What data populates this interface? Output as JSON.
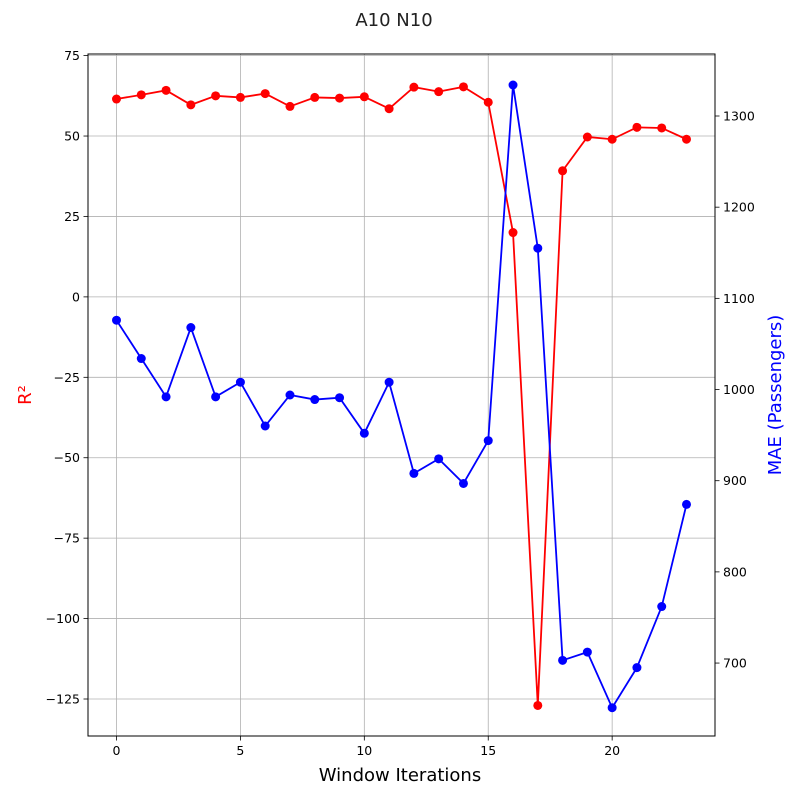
{
  "chart_data": {
    "type": "line",
    "title": "A10 N10",
    "xlabel": "Window Iterations",
    "ylabel_left": "R²",
    "ylabel_right": "MAE (Passengers)",
    "xlim": [
      -1.15,
      24.15
    ],
    "ylim_left": [
      -136.5,
      75.5
    ],
    "ylim_right": [
      620,
      1368
    ],
    "x_ticks": [
      0,
      5,
      10,
      15,
      20
    ],
    "y_ticks_left": [
      75,
      50,
      25,
      0,
      -25,
      -50,
      -75,
      -100,
      -125
    ],
    "y_ticks_right": [
      1300,
      1200,
      1100,
      1000,
      900,
      800,
      700
    ],
    "grid": true,
    "x": [
      0,
      1,
      2,
      3,
      4,
      5,
      6,
      7,
      8,
      9,
      10,
      11,
      12,
      13,
      14,
      15,
      16,
      17,
      18,
      19,
      20,
      21,
      22,
      23
    ],
    "series": [
      {
        "axis": "left",
        "color": "#ff0000",
        "values": [
          61.5,
          62.8,
          64.2,
          59.7,
          62.5,
          62.0,
          63.2,
          59.2,
          62.0,
          61.8,
          62.2,
          58.5,
          65.2,
          63.8,
          65.3,
          60.5,
          20.0,
          -127.0,
          39.2,
          49.7,
          49.0,
          52.7,
          52.5,
          49.0
        ]
      },
      {
        "axis": "right",
        "color": "#0000ff",
        "values": [
          1076,
          1034,
          992,
          1068,
          992,
          1008,
          960,
          994,
          989,
          991,
          952,
          1008,
          908,
          924,
          897,
          944,
          1334,
          1155,
          703,
          712,
          651,
          695,
          762,
          874
        ]
      }
    ]
  }
}
